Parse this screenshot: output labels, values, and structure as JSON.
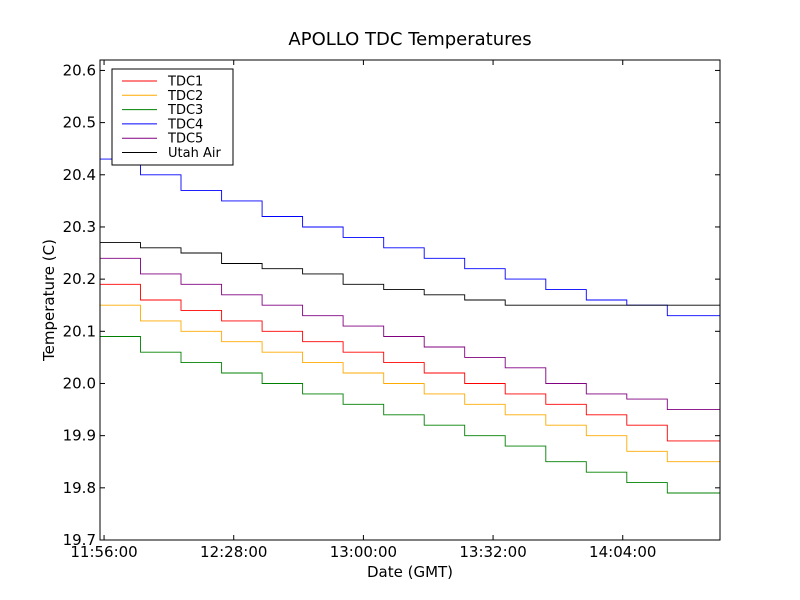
{
  "chart_data": {
    "type": "line",
    "title": "APOLLO TDC Temperatures",
    "xlabel": "Date (GMT)",
    "ylabel": "Temperature (C)",
    "x_unit": "time of day (GMT)",
    "xlim": [
      "11:55:00",
      "14:28:00"
    ],
    "ylim": [
      19.7,
      20.62
    ],
    "x_ticks": [
      "11:56:00",
      "12:28:00",
      "13:00:00",
      "13:32:00",
      "14:04:00"
    ],
    "y_ticks": [
      "19.7",
      "19.8",
      "19.9",
      "20.0",
      "20.1",
      "20.2",
      "20.3",
      "20.4",
      "20.5",
      "20.6"
    ],
    "grid": false,
    "legend_position": "top-left",
    "series": [
      {
        "name": "TDC1",
        "color": "#ff0000",
        "points": [
          [
            "11:55:00",
            20.19
          ],
          [
            "12:05:00",
            20.16
          ],
          [
            "12:15:00",
            20.14
          ],
          [
            "12:25:00",
            20.12
          ],
          [
            "12:35:00",
            20.1
          ],
          [
            "12:45:00",
            20.08
          ],
          [
            "12:55:00",
            20.06
          ],
          [
            "13:05:00",
            20.04
          ],
          [
            "13:15:00",
            20.02
          ],
          [
            "13:25:00",
            20.0
          ],
          [
            "13:35:00",
            19.98
          ],
          [
            "13:45:00",
            19.96
          ],
          [
            "13:55:00",
            19.94
          ],
          [
            "14:05:00",
            19.92
          ],
          [
            "14:15:00",
            19.89
          ],
          [
            "14:28:00",
            19.87
          ]
        ]
      },
      {
        "name": "TDC2",
        "color": "#ffaa00",
        "points": [
          [
            "11:55:00",
            20.15
          ],
          [
            "12:05:00",
            20.12
          ],
          [
            "12:15:00",
            20.1
          ],
          [
            "12:25:00",
            20.08
          ],
          [
            "12:35:00",
            20.06
          ],
          [
            "12:45:00",
            20.04
          ],
          [
            "12:55:00",
            20.02
          ],
          [
            "13:05:00",
            20.0
          ],
          [
            "13:15:00",
            19.98
          ],
          [
            "13:25:00",
            19.96
          ],
          [
            "13:35:00",
            19.94
          ],
          [
            "13:45:00",
            19.92
          ],
          [
            "13:55:00",
            19.9
          ],
          [
            "14:05:00",
            19.87
          ],
          [
            "14:15:00",
            19.85
          ],
          [
            "14:28:00",
            19.83
          ]
        ]
      },
      {
        "name": "TDC3",
        "color": "#008000",
        "points": [
          [
            "11:55:00",
            20.09
          ],
          [
            "12:05:00",
            20.06
          ],
          [
            "12:15:00",
            20.04
          ],
          [
            "12:25:00",
            20.02
          ],
          [
            "12:35:00",
            20.0
          ],
          [
            "12:45:00",
            19.98
          ],
          [
            "12:55:00",
            19.96
          ],
          [
            "13:05:00",
            19.94
          ],
          [
            "13:15:00",
            19.92
          ],
          [
            "13:25:00",
            19.9
          ],
          [
            "13:35:00",
            19.88
          ],
          [
            "13:45:00",
            19.85
          ],
          [
            "13:55:00",
            19.83
          ],
          [
            "14:05:00",
            19.81
          ],
          [
            "14:15:00",
            19.79
          ],
          [
            "14:28:00",
            19.77
          ]
        ]
      },
      {
        "name": "TDC4",
        "color": "#0000ff",
        "points": [
          [
            "11:55:00",
            20.43
          ],
          [
            "12:05:00",
            20.4
          ],
          [
            "12:15:00",
            20.37
          ],
          [
            "12:25:00",
            20.35
          ],
          [
            "12:35:00",
            20.32
          ],
          [
            "12:45:00",
            20.3
          ],
          [
            "12:55:00",
            20.28
          ],
          [
            "13:05:00",
            20.26
          ],
          [
            "13:15:00",
            20.24
          ],
          [
            "13:25:00",
            20.22
          ],
          [
            "13:35:00",
            20.2
          ],
          [
            "13:45:00",
            20.18
          ],
          [
            "13:55:00",
            20.16
          ],
          [
            "14:05:00",
            20.15
          ],
          [
            "14:15:00",
            20.13
          ],
          [
            "14:28:00",
            20.12
          ]
        ]
      },
      {
        "name": "TDC5",
        "color": "#800080",
        "points": [
          [
            "11:55:00",
            20.24
          ],
          [
            "12:05:00",
            20.21
          ],
          [
            "12:15:00",
            20.19
          ],
          [
            "12:25:00",
            20.17
          ],
          [
            "12:35:00",
            20.15
          ],
          [
            "12:45:00",
            20.13
          ],
          [
            "12:55:00",
            20.11
          ],
          [
            "13:05:00",
            20.09
          ],
          [
            "13:15:00",
            20.07
          ],
          [
            "13:25:00",
            20.05
          ],
          [
            "13:35:00",
            20.03
          ],
          [
            "13:45:00",
            20.0
          ],
          [
            "13:55:00",
            19.98
          ],
          [
            "14:05:00",
            19.97
          ],
          [
            "14:15:00",
            19.95
          ],
          [
            "14:28:00",
            19.93
          ]
        ]
      },
      {
        "name": "Utah Air",
        "color": "#000000",
        "points": [
          [
            "11:55:00",
            20.27
          ],
          [
            "12:05:00",
            20.26
          ],
          [
            "12:15:00",
            20.25
          ],
          [
            "12:25:00",
            20.23
          ],
          [
            "12:35:00",
            20.22
          ],
          [
            "12:45:00",
            20.21
          ],
          [
            "12:55:00",
            20.19
          ],
          [
            "13:05:00",
            20.18
          ],
          [
            "13:15:00",
            20.17
          ],
          [
            "13:25:00",
            20.16
          ],
          [
            "13:35:00",
            20.15
          ],
          [
            "13:45:00",
            20.15
          ],
          [
            "13:55:00",
            20.15
          ],
          [
            "14:05:00",
            20.15
          ],
          [
            "14:15:00",
            20.15
          ],
          [
            "14:28:00",
            20.15
          ]
        ]
      }
    ]
  }
}
